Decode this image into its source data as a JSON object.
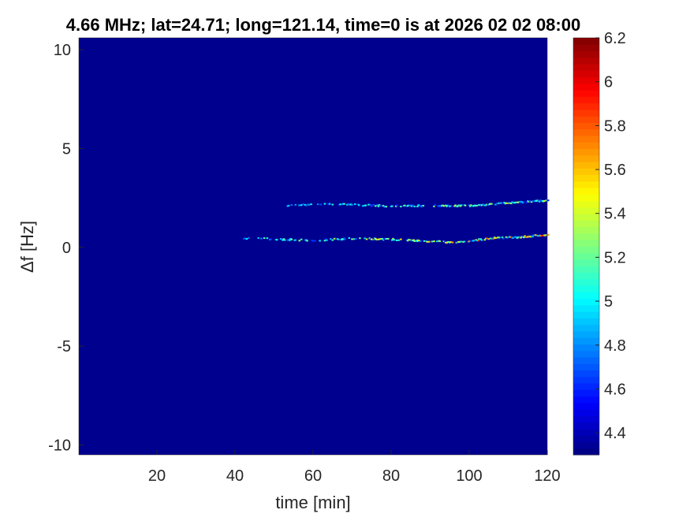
{
  "chart_data": {
    "type": "heatmap",
    "title": "4.66 MHz;  lat=24.71; long=121.14, time=0 is at 2026 02 02 08:00",
    "xlabel": "time [min]",
    "ylabel": "Δf [Hz]",
    "xlim": [
      0,
      120
    ],
    "ylim": [
      -10.5,
      10.6
    ],
    "xticks": [
      20,
      40,
      60,
      80,
      100,
      120
    ],
    "yticks": [
      -10,
      -5,
      0,
      5,
      10
    ],
    "colormap": "jet",
    "clim": [
      4.3,
      6.2
    ],
    "colorbar_ticks": [
      4.4,
      4.6,
      4.8,
      5,
      5.2,
      5.4,
      5.6,
      5.8,
      6,
      6.2
    ],
    "background_value": 4.3,
    "traces": [
      {
        "time": [
          53,
          62,
          70,
          80,
          90,
          100,
          110,
          120
        ],
        "df": [
          2.1,
          2.2,
          2.15,
          2.08,
          2.1,
          2.1,
          2.25,
          2.36
        ],
        "peak_value": 5.6
      },
      {
        "time": [
          42,
          50,
          60,
          70,
          80,
          90,
          97,
          105,
          112,
          120
        ],
        "df": [
          0.45,
          0.42,
          0.35,
          0.45,
          0.4,
          0.3,
          0.24,
          0.45,
          0.5,
          0.64
        ],
        "peak_value": 6.0
      }
    ]
  }
}
